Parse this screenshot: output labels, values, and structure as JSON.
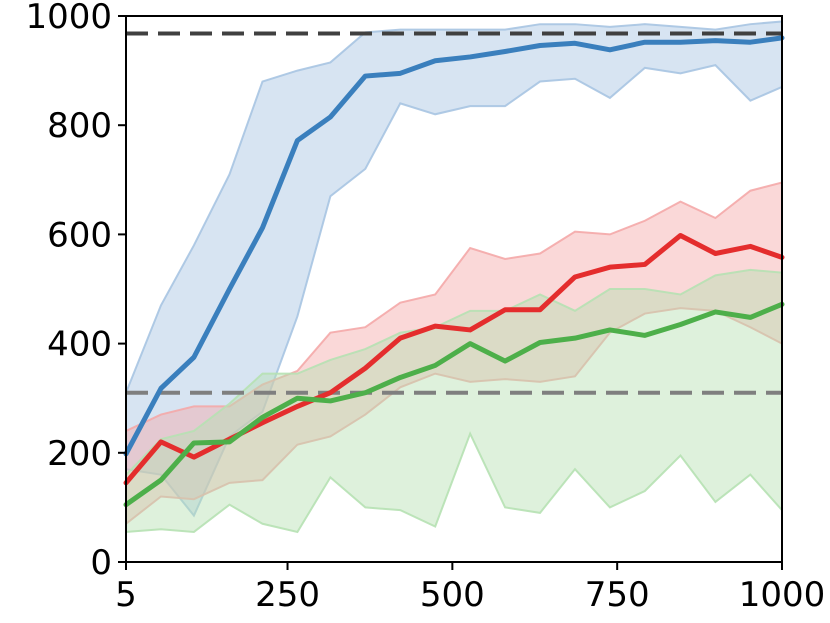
{
  "chart_data": {
    "type": "line",
    "title": "",
    "xlabel": "",
    "ylabel": "",
    "xlim": [
      5,
      1000
    ],
    "ylim": [
      0,
      1000
    ],
    "grid": false,
    "legend": "none",
    "x_ticks": [
      {
        "value": 5,
        "label": "5"
      },
      {
        "value": 250,
        "label": "250"
      },
      {
        "value": 500,
        "label": "500"
      },
      {
        "value": 750,
        "label": "750"
      },
      {
        "value": 1000,
        "label": "1000"
      }
    ],
    "y_ticks": [
      {
        "value": 0,
        "label": "0"
      },
      {
        "value": 200,
        "label": "200"
      },
      {
        "value": 400,
        "label": "400"
      },
      {
        "value": 600,
        "label": "600"
      },
      {
        "value": 800,
        "label": "800"
      },
      {
        "value": 1000,
        "label": "1000"
      }
    ],
    "reference_lines": [
      {
        "y": 968,
        "color": "#404040",
        "style": "dashed"
      },
      {
        "y": 310,
        "color": "#7f7f7f",
        "style": "dashed"
      }
    ],
    "x": [
      5,
      58,
      108,
      162,
      212,
      265,
      315,
      368,
      421,
      474,
      527,
      580,
      633,
      686,
      739,
      792,
      846,
      899,
      952,
      1000
    ],
    "series": [
      {
        "color": "#3a7fbd",
        "fill": "#a7c4e2",
        "values": [
          198,
          318,
          375,
          500,
          612,
          772,
          815,
          890,
          895,
          918,
          925,
          935,
          946,
          950,
          938,
          952,
          952,
          955,
          952,
          960
        ],
        "upper": [
          310,
          470,
          580,
          710,
          880,
          900,
          915,
          970,
          975,
          975,
          975,
          975,
          985,
          985,
          980,
          985,
          980,
          975,
          985,
          990
        ],
        "lower": [
          170,
          160,
          85,
          230,
          275,
          450,
          670,
          720,
          840,
          820,
          835,
          835,
          880,
          885,
          850,
          905,
          895,
          910,
          845,
          870
        ]
      },
      {
        "color": "#e42d2d",
        "fill": "#f4a8a8",
        "values": [
          145,
          220,
          192,
          225,
          255,
          285,
          310,
          355,
          410,
          432,
          425,
          462,
          462,
          522,
          540,
          545,
          598,
          565,
          578,
          558
        ],
        "upper": [
          240,
          270,
          285,
          285,
          325,
          350,
          420,
          430,
          475,
          490,
          575,
          555,
          565,
          605,
          600,
          625,
          660,
          630,
          680,
          695
        ],
        "lower": [
          70,
          120,
          115,
          145,
          150,
          215,
          230,
          270,
          320,
          345,
          330,
          335,
          330,
          340,
          420,
          455,
          465,
          460,
          430,
          400
        ]
      },
      {
        "color": "#4daf4a",
        "fill": "#b6e1b2",
        "values": [
          105,
          150,
          218,
          220,
          265,
          300,
          295,
          310,
          338,
          360,
          400,
          368,
          402,
          410,
          425,
          415,
          435,
          458,
          448,
          472
        ],
        "upper": [
          160,
          225,
          240,
          290,
          345,
          345,
          370,
          390,
          420,
          430,
          460,
          460,
          490,
          460,
          500,
          500,
          490,
          525,
          535,
          530
        ],
        "lower": [
          55,
          60,
          55,
          105,
          70,
          55,
          155,
          100,
          95,
          65,
          235,
          100,
          90,
          170,
          100,
          130,
          195,
          110,
          160,
          95
        ]
      }
    ]
  }
}
